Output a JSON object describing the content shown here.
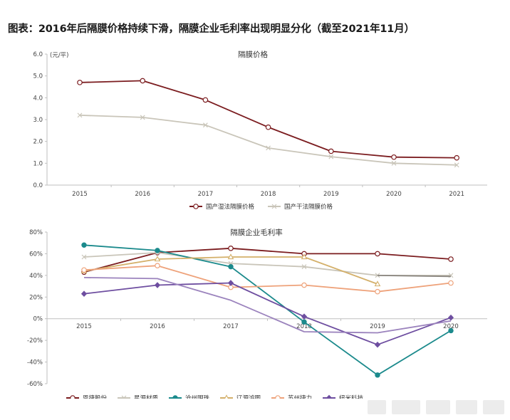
{
  "page": {
    "title": "图表：2016年后隔膜价格持续下滑，隔膜企业毛利率出现明显分化（截至2021年11月）"
  },
  "colors": {
    "axis": "#bfbfbf",
    "tick_text": "#444444"
  },
  "chart_data": [
    {
      "type": "line",
      "title": "隔膜价格",
      "unit_label": "(元/平)",
      "x": [
        "2015",
        "2016",
        "2017",
        "2018",
        "2019",
        "2020",
        "2021"
      ],
      "ylim": [
        0,
        6
      ],
      "yticks": [
        "0.0",
        "1.0",
        "2.0",
        "3.0",
        "4.0",
        "5.0",
        "6.0"
      ],
      "grid": false,
      "legend_position": "bottom-center",
      "series": [
        {
          "name": "国产湿法隔膜价格",
          "color": "#7b1c1f",
          "marker": "circle",
          "values": [
            4.7,
            4.78,
            3.9,
            2.65,
            1.55,
            1.28,
            1.25
          ]
        },
        {
          "name": "国产干法隔膜价格",
          "color": "#c9c5b9",
          "marker": "cross",
          "values": [
            3.2,
            3.1,
            2.75,
            1.7,
            1.3,
            1.0,
            0.92
          ]
        }
      ]
    },
    {
      "type": "line",
      "title": "隔膜企业毛利率",
      "x": [
        "2015",
        "2016",
        "2017",
        "2018",
        "2019",
        "2020"
      ],
      "ylim": [
        -60,
        80
      ],
      "yticks": [
        "-60%",
        "-40%",
        "-20%",
        "0%",
        "20%",
        "40%",
        "60%",
        "80%"
      ],
      "grid": false,
      "legend_position": "bottom-center",
      "series": [
        {
          "name": "恩捷股份",
          "color": "#7b1c1f",
          "marker": "circle",
          "values": [
            43,
            61,
            65,
            60,
            60,
            55
          ]
        },
        {
          "name": "星源材质",
          "color": "#c9c5b9",
          "marker": "cross",
          "values": [
            57,
            61,
            51,
            48,
            40,
            40
          ]
        },
        {
          "name": "沧州明珠",
          "color": "#1b8a8c",
          "marker": "dot",
          "values": [
            68,
            63,
            48,
            -3,
            -52,
            -11
          ]
        },
        {
          "name": "辽源鸿图",
          "color": "#d4b06a",
          "marker": "triangle",
          "values": [
            44,
            55,
            57,
            57,
            32,
            null
          ]
        },
        {
          "name": "苏州捷力",
          "color": "#eea27a",
          "marker": "circle",
          "values": [
            45,
            49,
            29,
            31,
            25,
            33
          ]
        },
        {
          "name": "纽米科技",
          "color": "#6e4ea0",
          "marker": "diamond",
          "values": [
            23,
            31,
            33,
            2,
            -24,
            1
          ]
        },
        {
          "name": "",
          "color": "#9b83bd",
          "marker": "none",
          "values": [
            38,
            37,
            17,
            -12,
            -13,
            -2
          ]
        },
        {
          "name": "",
          "color": "#8a8680",
          "marker": "none",
          "values": [
            null,
            null,
            null,
            null,
            40,
            39
          ]
        }
      ]
    }
  ]
}
